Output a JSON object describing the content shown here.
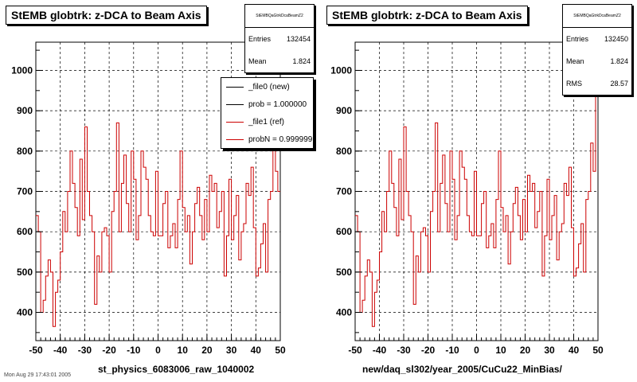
{
  "footer_text": "Mon Aug 29 17:43:01 2005",
  "chart_data": [
    {
      "type": "line",
      "title": "StEMB globtrk: z-DCA to Beam Axis",
      "xlabel": "st_physics_6083006_raw_1040002",
      "ylabel": "",
      "xlim": [
        -50,
        50
      ],
      "ylim": [
        330,
        1070
      ],
      "xticks": [
        -50,
        -40,
        -30,
        -20,
        -10,
        0,
        10,
        20,
        30,
        40,
        50
      ],
      "yticks": [
        400,
        500,
        600,
        700,
        800,
        900,
        1000
      ],
      "grid": true,
      "stats": {
        "name": "StEMBQaGtrkDcaBeamZ2",
        "entries_label": "Entries",
        "entries": "132454",
        "mean_label": "Mean",
        "mean": "1.824"
      },
      "legend": {
        "position": "top-right",
        "entries": [
          "_file0 (new)",
          "prob = 1.000000",
          "_file1 (ref)",
          "probN = 0.999999"
        ],
        "colors": [
          "#000000",
          "#000000",
          "#cc0000",
          "#cc0000"
        ]
      },
      "series": [
        {
          "color": "#cc0000",
          "step_x": [
            -50,
            -49,
            -48,
            -47,
            -46,
            -45,
            -44,
            -43,
            -42,
            -41,
            -40,
            -39,
            -38,
            -37,
            -36,
            -35,
            -34,
            -33,
            -32,
            -31,
            -30,
            -29,
            -28,
            -27,
            -26,
            -25,
            -24,
            -23,
            -22,
            -21,
            -20,
            -19,
            -18,
            -17,
            -16,
            -15,
            -14,
            -13,
            -12,
            -11,
            -10,
            -9,
            -8,
            -7,
            -6,
            -5,
            -4,
            -3,
            -2,
            -1,
            0,
            1,
            2,
            3,
            4,
            5,
            6,
            7,
            8,
            9,
            10,
            11,
            12,
            13,
            14,
            15,
            16,
            17,
            18,
            19,
            20,
            21,
            22,
            23,
            24,
            25,
            26,
            27,
            28,
            29,
            30,
            31,
            32,
            33,
            34,
            35,
            36,
            37,
            38,
            39,
            40,
            41,
            42,
            43,
            44,
            45,
            46,
            47,
            48,
            49,
            50
          ],
          "values": [
            640,
            600,
            400,
            430,
            490,
            530,
            500,
            365,
            450,
            480,
            550,
            650,
            600,
            700,
            800,
            720,
            660,
            590,
            780,
            630,
            860,
            700,
            640,
            600,
            420,
            540,
            500,
            600,
            610,
            590,
            500,
            650,
            700,
            870,
            600,
            720,
            790,
            670,
            600,
            800,
            730,
            580,
            640,
            800,
            760,
            730,
            640,
            600,
            590,
            750,
            590,
            590,
            670,
            700,
            560,
            590,
            620,
            560,
            680,
            800,
            660,
            600,
            640,
            520,
            600,
            670,
            710,
            640,
            580,
            680,
            600,
            740,
            700,
            720,
            610,
            650,
            700,
            490,
            590,
            730,
            580,
            640,
            690,
            530,
            600,
            620,
            720,
            690,
            760,
            610,
            490,
            510,
            570,
            620,
            500,
            680,
            700,
            820,
            750,
            700
          ]
        }
      ]
    },
    {
      "type": "line",
      "title": "StEMB globtrk: z-DCA to Beam Axis",
      "xlabel": "new/daq_sl302/year_2005/CuCu22_MinBias/",
      "ylabel": "",
      "xlim": [
        -50,
        50
      ],
      "ylim": [
        330,
        1070
      ],
      "xticks": [
        -50,
        -40,
        -30,
        -20,
        -10,
        0,
        10,
        20,
        30,
        40,
        50
      ],
      "yticks": [
        400,
        500,
        600,
        700,
        800,
        900,
        1000
      ],
      "grid": true,
      "stats": {
        "name": "StEMBQaGtrkDcaBeamZ2",
        "entries_label": "Entries",
        "entries": "132450",
        "mean_label": "Mean",
        "mean": "1.824",
        "rms_label": "RMS",
        "rms": "28.57"
      },
      "series": [
        {
          "color": "#cc0000",
          "values": [
            640,
            600,
            400,
            430,
            490,
            530,
            500,
            365,
            450,
            480,
            550,
            650,
            600,
            700,
            800,
            720,
            660,
            590,
            780,
            630,
            860,
            700,
            640,
            600,
            420,
            540,
            500,
            600,
            610,
            590,
            500,
            650,
            700,
            870,
            600,
            720,
            790,
            670,
            600,
            800,
            730,
            580,
            640,
            800,
            760,
            730,
            640,
            600,
            590,
            750,
            590,
            590,
            670,
            700,
            560,
            590,
            620,
            560,
            680,
            800,
            660,
            600,
            640,
            520,
            600,
            670,
            710,
            640,
            580,
            680,
            600,
            740,
            700,
            720,
            610,
            650,
            700,
            490,
            590,
            730,
            580,
            640,
            690,
            530,
            600,
            620,
            720,
            690,
            760,
            610,
            490,
            510,
            570,
            620,
            500,
            680,
            700,
            820,
            750,
            950
          ]
        }
      ]
    }
  ]
}
